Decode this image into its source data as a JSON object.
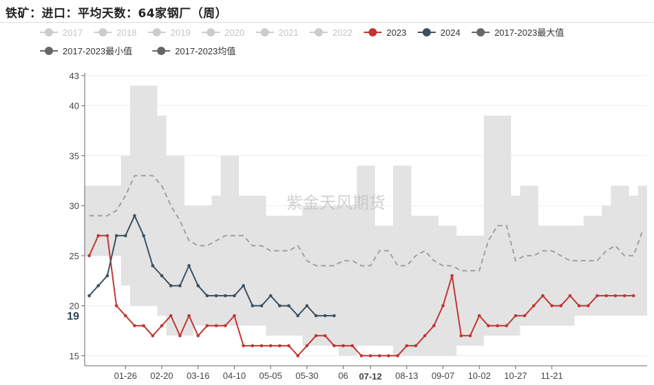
{
  "title": "铁矿：进口：平均天数：64家钢厂（周）",
  "watermark": "紫金天风期货",
  "colors": {
    "band": "#e3e3e3",
    "mean": "#a0a0a0",
    "s2023": "#c23531",
    "s2024": "#3d4f60",
    "inactive": "#cccccc",
    "gray_legend": "#666666"
  },
  "chart_data": {
    "type": "line",
    "ylim": [
      14,
      43
    ],
    "yticks": [
      15,
      20,
      25,
      30,
      35,
      40,
      43
    ],
    "x_tick_labels": [
      "01-26",
      "02-20",
      "03-16",
      "04-10",
      "05-05",
      "05-30",
      "06",
      "07-12",
      "08-13",
      "09-07",
      "10-02",
      "10-27",
      "11-21"
    ],
    "x_tick_positions": [
      4,
      8,
      12,
      16,
      20,
      24,
      28,
      31,
      35,
      39,
      43,
      47,
      51
    ],
    "highlight_x_label": "07-12",
    "y_pointer_label": "19",
    "y_pointer_value": 19,
    "legend": [
      {
        "name": "2017",
        "active": false
      },
      {
        "name": "2018",
        "active": false
      },
      {
        "name": "2019",
        "active": false
      },
      {
        "name": "2020",
        "active": false
      },
      {
        "name": "2021",
        "active": false
      },
      {
        "name": "2022",
        "active": false
      },
      {
        "name": "2023",
        "active": true
      },
      {
        "name": "2024",
        "active": true
      },
      {
        "name": "2017-2023最大值",
        "active": true
      },
      {
        "name": "2017-2023最小值",
        "active": true
      },
      {
        "name": "2017-2023均值",
        "active": true
      }
    ],
    "band_max": [
      32,
      32,
      32,
      32,
      35,
      42,
      42,
      42,
      39,
      35,
      35,
      30,
      30,
      30,
      31,
      35,
      35,
      31,
      31,
      31,
      29,
      29,
      29,
      29,
      30,
      30,
      30,
      30,
      30,
      30,
      34,
      34,
      28,
      28,
      34,
      34,
      29,
      29,
      29,
      28,
      28,
      27,
      27,
      27,
      39,
      39,
      39,
      31,
      32,
      32,
      28,
      28,
      28,
      28,
      28,
      29,
      29,
      30,
      32,
      32,
      31,
      32
    ],
    "band_min": [
      25,
      25,
      25,
      25,
      22,
      20,
      20,
      20,
      19,
      17,
      17,
      17,
      18,
      18,
      18,
      18,
      18,
      18,
      18,
      18,
      17,
      17,
      17,
      17,
      16,
      16,
      16,
      16,
      15,
      15,
      16,
      16,
      16,
      16,
      15,
      15,
      15,
      15,
      15,
      15,
      15,
      16,
      16,
      16,
      17,
      17,
      17,
      17,
      18,
      18,
      18,
      18,
      18,
      18,
      19,
      19,
      19,
      19,
      19,
      19,
      19,
      19
    ],
    "mean_line": [
      29,
      29,
      29,
      29.5,
      31,
      33,
      33,
      33,
      32,
      30,
      28.5,
      26.5,
      26,
      26,
      26.5,
      27,
      27,
      27,
      26,
      26,
      25.5,
      25.5,
      25.5,
      26,
      24.5,
      24,
      24,
      24,
      24.5,
      24.5,
      24,
      24,
      25.5,
      25.5,
      24,
      24,
      25,
      25.5,
      24.5,
      24,
      24,
      23.5,
      23.5,
      23.5,
      26.5,
      28,
      28,
      24.5,
      25,
      25,
      25.5,
      25.5,
      25,
      24.5,
      24.5,
      24.5,
      24.5,
      25.5,
      26,
      25,
      25,
      27.5
    ],
    "series": [
      {
        "name": "2023",
        "x": [
          0,
          1,
          2,
          3,
          4,
          5,
          6,
          7,
          8,
          9,
          10,
          11,
          12,
          13,
          14,
          15,
          16,
          17,
          18,
          19,
          20,
          21,
          22,
          23,
          24,
          25,
          26,
          27,
          28,
          29,
          30,
          31,
          32,
          33,
          34,
          35,
          36,
          37,
          38,
          39,
          40,
          41,
          42,
          43,
          44,
          45,
          46,
          47,
          48,
          49,
          50,
          51,
          52,
          53,
          54,
          55,
          56,
          57,
          58,
          59,
          60
        ],
        "values": [
          25,
          27,
          27,
          20,
          19,
          18,
          18,
          17,
          18,
          19,
          17,
          19,
          17,
          18,
          18,
          18,
          19,
          16,
          16,
          16,
          16,
          16,
          16,
          15,
          16,
          17,
          17,
          16,
          16,
          16,
          15,
          15,
          15,
          15,
          15,
          16,
          16,
          17,
          18,
          20,
          23,
          17,
          17,
          19,
          18,
          18,
          18,
          19,
          19,
          20,
          21,
          20,
          20,
          21,
          20,
          20,
          21,
          21,
          21,
          21,
          21
        ]
      },
      {
        "name": "2024",
        "x": [
          0,
          1,
          2,
          3,
          4,
          5,
          6,
          7,
          8,
          9,
          10,
          11,
          12,
          13,
          14,
          15,
          16,
          17,
          18,
          19,
          20,
          21,
          22,
          23,
          24,
          25,
          26,
          27
        ],
        "values": [
          21,
          22,
          23,
          27,
          27,
          29,
          27,
          24,
          23,
          22,
          22,
          24,
          22,
          21,
          21,
          21,
          21,
          22,
          20,
          20,
          21,
          20,
          20,
          19,
          20,
          19,
          19,
          19
        ]
      }
    ]
  }
}
